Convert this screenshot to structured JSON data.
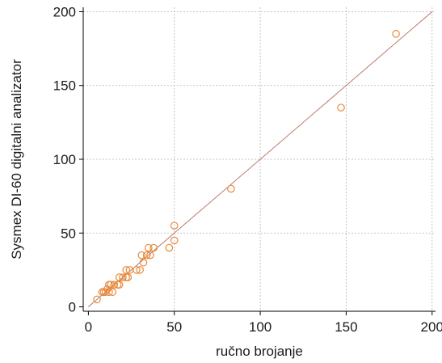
{
  "chart_data": {
    "type": "scatter",
    "xlabel": "ručno brojanje",
    "ylabel": "Sysmex DI-60 digitalni analizator",
    "xlim": [
      -3,
      202
    ],
    "ylim": [
      -3,
      203
    ],
    "xticks": [
      0,
      50,
      100,
      150,
      200
    ],
    "yticks": [
      0,
      50,
      100,
      150,
      200
    ],
    "x_tick_labels": [
      "0",
      "50",
      "100",
      "150",
      "200"
    ],
    "y_tick_labels": [
      "0",
      "50",
      "100",
      "150",
      "200"
    ],
    "grid": true,
    "marker_color": "#e8893a",
    "line_color": "#b26a5a",
    "reference_line": {
      "type": "identity",
      "from": [
        0,
        0
      ],
      "to": [
        200,
        200
      ]
    },
    "points": [
      {
        "x": 5,
        "y": 5
      },
      {
        "x": 8,
        "y": 10
      },
      {
        "x": 9,
        "y": 10
      },
      {
        "x": 10,
        "y": 10
      },
      {
        "x": 11,
        "y": 12
      },
      {
        "x": 12,
        "y": 10
      },
      {
        "x": 12,
        "y": 15
      },
      {
        "x": 13,
        "y": 15
      },
      {
        "x": 14,
        "y": 10
      },
      {
        "x": 15,
        "y": 15
      },
      {
        "x": 17,
        "y": 15
      },
      {
        "x": 18,
        "y": 20
      },
      {
        "x": 18,
        "y": 15
      },
      {
        "x": 20,
        "y": 20
      },
      {
        "x": 22,
        "y": 20
      },
      {
        "x": 22,
        "y": 25
      },
      {
        "x": 23,
        "y": 20
      },
      {
        "x": 24,
        "y": 25
      },
      {
        "x": 28,
        "y": 25
      },
      {
        "x": 30,
        "y": 25
      },
      {
        "x": 31,
        "y": 35
      },
      {
        "x": 32,
        "y": 30
      },
      {
        "x": 34,
        "y": 35
      },
      {
        "x": 35,
        "y": 40
      },
      {
        "x": 36,
        "y": 35
      },
      {
        "x": 38,
        "y": 40
      },
      {
        "x": 47,
        "y": 40
      },
      {
        "x": 50,
        "y": 45
      },
      {
        "x": 50,
        "y": 55
      },
      {
        "x": 83,
        "y": 80
      },
      {
        "x": 147,
        "y": 135
      },
      {
        "x": 179,
        "y": 185
      }
    ]
  }
}
